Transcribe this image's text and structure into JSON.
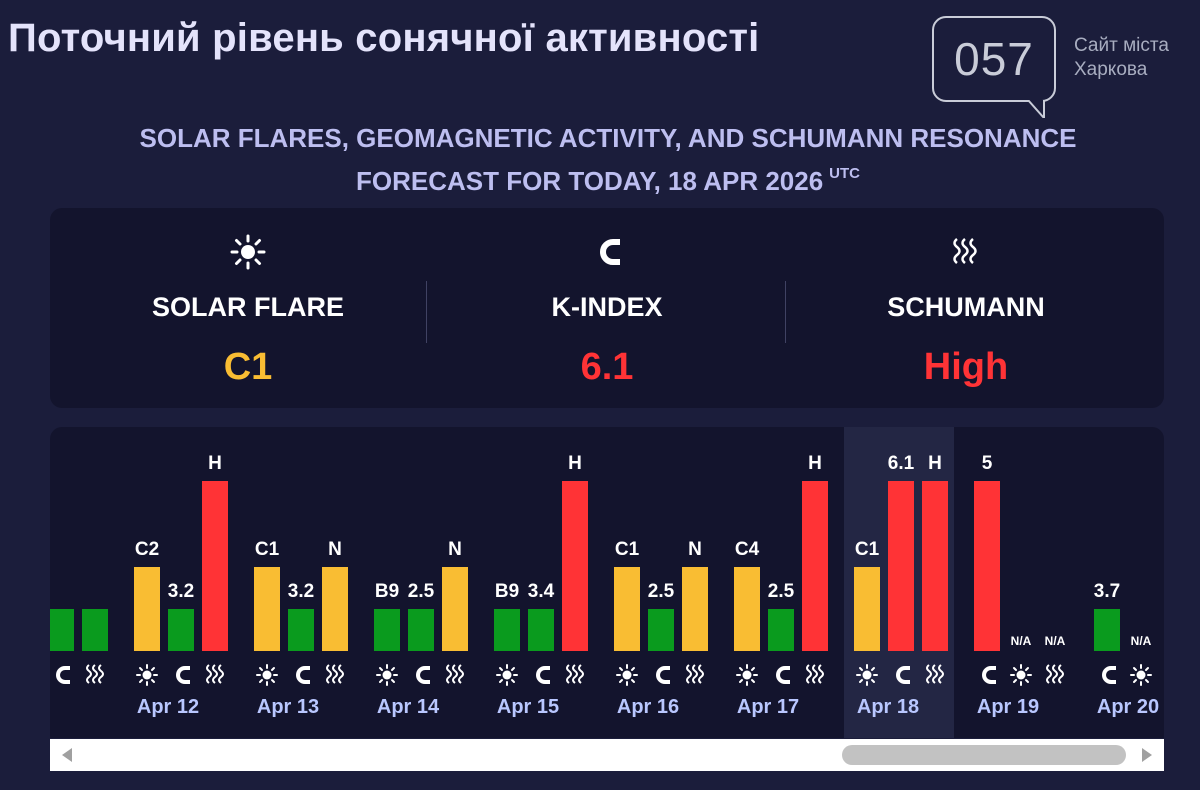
{
  "header": {
    "title": "Поточний рівень сонячної активності",
    "logo_number": "057",
    "logo_caption_line1": "Сайт міста",
    "logo_caption_line2": "Харкова"
  },
  "forecast_heading": {
    "line1": "SOLAR FLARES, GEOMAGNETIC ACTIVITY, AND SCHUMANN RESONANCE",
    "line2": "FORECAST FOR TODAY, 18 APR 2026",
    "tz": "UTC"
  },
  "summary": [
    {
      "icon": "sun-icon",
      "label": "SOLAR FLARE",
      "value": "C1",
      "color": "#f9bd33"
    },
    {
      "icon": "magnet-icon",
      "label": "K-INDEX",
      "value": "6.1",
      "color": "#ff3336"
    },
    {
      "icon": "waves-icon",
      "label": "SCHUMANN",
      "value": "High",
      "color": "#ff3336"
    }
  ],
  "colors": {
    "green": "#0a9b1e",
    "yellow": "#f9bd33",
    "red": "#ff3336",
    "today_column": "#232644"
  },
  "history_levels": {
    "low": 1,
    "medium": 2,
    "high": 3
  },
  "history": [
    {
      "day": "",
      "bars": [
        {
          "type": "flare",
          "label": "",
          "level": 1
        },
        {
          "type": "kindex",
          "label": "",
          "level": 1
        },
        {
          "type": "schumann",
          "label": "",
          "level": 1
        }
      ],
      "icons_partial": true
    },
    {
      "day": "Apr 12",
      "bars": [
        {
          "type": "flare",
          "label": "C2",
          "level": 2,
          "color": "yellow"
        },
        {
          "type": "kindex",
          "label": "3.2",
          "level": 1,
          "color": "green"
        },
        {
          "type": "schumann",
          "label": "H",
          "level": 3,
          "color": "red"
        }
      ]
    },
    {
      "day": "Apr 13",
      "bars": [
        {
          "type": "flare",
          "label": "C1",
          "level": 2,
          "color": "yellow"
        },
        {
          "type": "kindex",
          "label": "3.2",
          "level": 1,
          "color": "green"
        },
        {
          "type": "schumann",
          "label": "N",
          "level": 2,
          "color": "yellow"
        }
      ]
    },
    {
      "day": "Apr 14",
      "bars": [
        {
          "type": "flare",
          "label": "B9",
          "level": 1,
          "color": "green"
        },
        {
          "type": "kindex",
          "label": "2.5",
          "level": 1,
          "color": "green"
        },
        {
          "type": "schumann",
          "label": "N",
          "level": 2,
          "color": "yellow"
        }
      ]
    },
    {
      "day": "Apr 15",
      "bars": [
        {
          "type": "flare",
          "label": "B9",
          "level": 1,
          "color": "green"
        },
        {
          "type": "kindex",
          "label": "3.4",
          "level": 1,
          "color": "green"
        },
        {
          "type": "schumann",
          "label": "H",
          "level": 3,
          "color": "red"
        }
      ]
    },
    {
      "day": "Apr 16",
      "bars": [
        {
          "type": "flare",
          "label": "C1",
          "level": 2,
          "color": "yellow"
        },
        {
          "type": "kindex",
          "label": "2.5",
          "level": 1,
          "color": "green"
        },
        {
          "type": "schumann",
          "label": "N",
          "level": 2,
          "color": "yellow"
        }
      ]
    },
    {
      "day": "Apr 17",
      "bars": [
        {
          "type": "flare",
          "label": "C4",
          "level": 2,
          "color": "yellow"
        },
        {
          "type": "kindex",
          "label": "2.5",
          "level": 1,
          "color": "green"
        },
        {
          "type": "schumann",
          "label": "H",
          "level": 3,
          "color": "red"
        }
      ]
    },
    {
      "day": "Apr 18",
      "today": true,
      "bars": [
        {
          "type": "flare",
          "label": "C1",
          "level": 2,
          "color": "yellow"
        },
        {
          "type": "kindex",
          "label": "6.1",
          "level": 3,
          "color": "red"
        },
        {
          "type": "schumann",
          "label": "H",
          "level": 3,
          "color": "red"
        }
      ]
    },
    {
      "day": "Apr 19",
      "bars": [
        {
          "type": "kindex",
          "label": "5",
          "level": 3,
          "color": "red"
        },
        {
          "type": "flare",
          "label": "N/A",
          "level": 0
        },
        {
          "type": "schumann",
          "label": "N/A",
          "level": 0
        }
      ]
    },
    {
      "day": "Apr 20",
      "bars": [
        {
          "type": "kindex",
          "label": "3.7",
          "level": 1,
          "color": "green"
        },
        {
          "type": "flare",
          "label": "N/A",
          "level": 0
        },
        {
          "type": "schumann",
          "label": "N/A",
          "level": 0
        }
      ]
    }
  ],
  "scrollbar": {
    "left_arrow": "◀",
    "right_arrow": "▶"
  }
}
